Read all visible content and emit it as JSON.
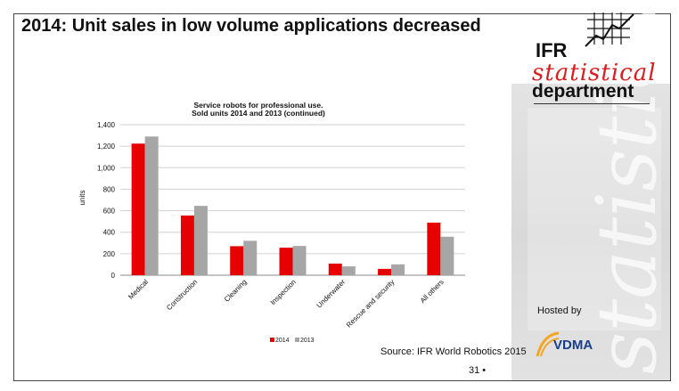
{
  "slide": {
    "title": "2014: Unit sales in low volume applications decreased",
    "source": "Source: IFR World Robotics 2015",
    "page_number": "31 •",
    "hosted_by": "Hosted by"
  },
  "logo": {
    "ifr": "IFR",
    "statistical": "statistical",
    "department": "department",
    "vdma": "VDMA",
    "watermark": "statistical"
  },
  "colors": {
    "series_2014": "#e60000",
    "series_2013": "#a6a6a6",
    "accent_red": "#d81e1e",
    "vdma_blue": "#1a3d8c",
    "vdma_orange": "#f5a623"
  },
  "chart_data": {
    "type": "bar",
    "title": "Service robots for professional use.",
    "subtitle": "Sold units 2014 and 2013 (continued)",
    "xlabel": "",
    "ylabel": "units",
    "ylim": [
      0,
      1400
    ],
    "yticks": [
      0,
      200,
      400,
      600,
      800,
      1000,
      1200,
      1400
    ],
    "ytick_labels": [
      "0",
      "200",
      "400",
      "600",
      "800",
      "1,000",
      "1,200",
      "1,400"
    ],
    "grid": true,
    "legend_position": "bottom",
    "categories": [
      "Medical",
      "Construction",
      "Cleaning",
      "Inspection",
      "Underwater",
      "Rescue and security",
      "All others"
    ],
    "series": [
      {
        "name": "2014",
        "values": [
          1224,
          555,
          270,
          256,
          108,
          59,
          489
        ]
      },
      {
        "name": "2013",
        "values": [
          1290,
          645,
          320,
          272,
          82,
          101,
          358
        ]
      }
    ]
  }
}
